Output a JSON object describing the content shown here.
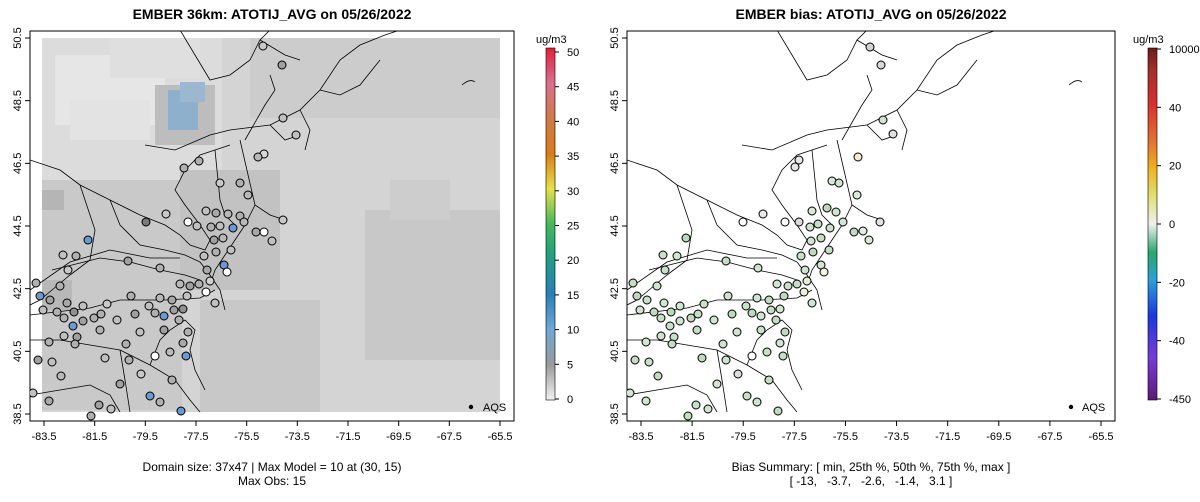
{
  "left": {
    "title": "EMBER 36km: ATOTIJ_AVG on 05/26/2022",
    "caption_line1": "Domain size: 37x47 | Max Model = 10 at (30, 15)",
    "caption_line2": "Max Obs: 15",
    "colorbar_unit": "ug/m3",
    "colorbar_ticks": [
      "50",
      "45",
      "40",
      "35",
      "30",
      "25",
      "20",
      "15",
      "10",
      "5",
      "0"
    ],
    "legend_label": "AQS"
  },
  "right": {
    "title": "EMBER bias: ATOTIJ_AVG on 05/26/2022",
    "caption_line1": "Bias Summary: [ min, 25th %, 50th %, 75th %, max ]",
    "caption_line2": "[ -13,   -3.7,   -2.6,   -1.4,   3.1 ]",
    "colorbar_unit": "ug/m3",
    "colorbar_ticks": [
      "10000",
      "40",
      "20",
      "0",
      "-20",
      "-40",
      "-450"
    ],
    "legend_label": "AQS"
  },
  "axes": {
    "x_ticks": [
      "-83.5",
      "-81.5",
      "-79.5",
      "-77.5",
      "-75.5",
      "-73.5",
      "-71.5",
      "-69.5",
      "-67.5",
      "-65.5"
    ],
    "y_ticks": [
      "50.5",
      "48.5",
      "46.5",
      "44.5",
      "42.5",
      "40.5",
      "38.5"
    ]
  }
}
